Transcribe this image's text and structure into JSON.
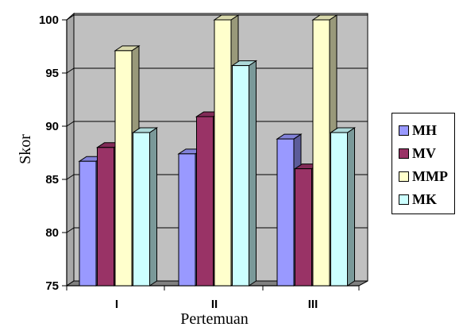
{
  "chart_data": {
    "type": "bar",
    "categories": [
      "I",
      "II",
      "III"
    ],
    "series": [
      {
        "name": "MH",
        "color": "#9999ff",
        "values": [
          86.7,
          87.4,
          88.8
        ]
      },
      {
        "name": "MV",
        "color": "#993366",
        "values": [
          88.0,
          90.9,
          86.0
        ]
      },
      {
        "name": "MMP",
        "color": "#ffffcc",
        "values": [
          97.1,
          100,
          100
        ]
      },
      {
        "name": "MK",
        "color": "#ccffff",
        "values": [
          89.4,
          95.7,
          89.4
        ]
      }
    ],
    "xlabel": "Pertemuan",
    "ylabel": "Skor",
    "ylim": [
      75,
      100
    ],
    "yticks": [
      75,
      80,
      85,
      90,
      95,
      100
    ],
    "grid": true,
    "legend_position": "right",
    "plot_background": "#c0c0c0"
  }
}
